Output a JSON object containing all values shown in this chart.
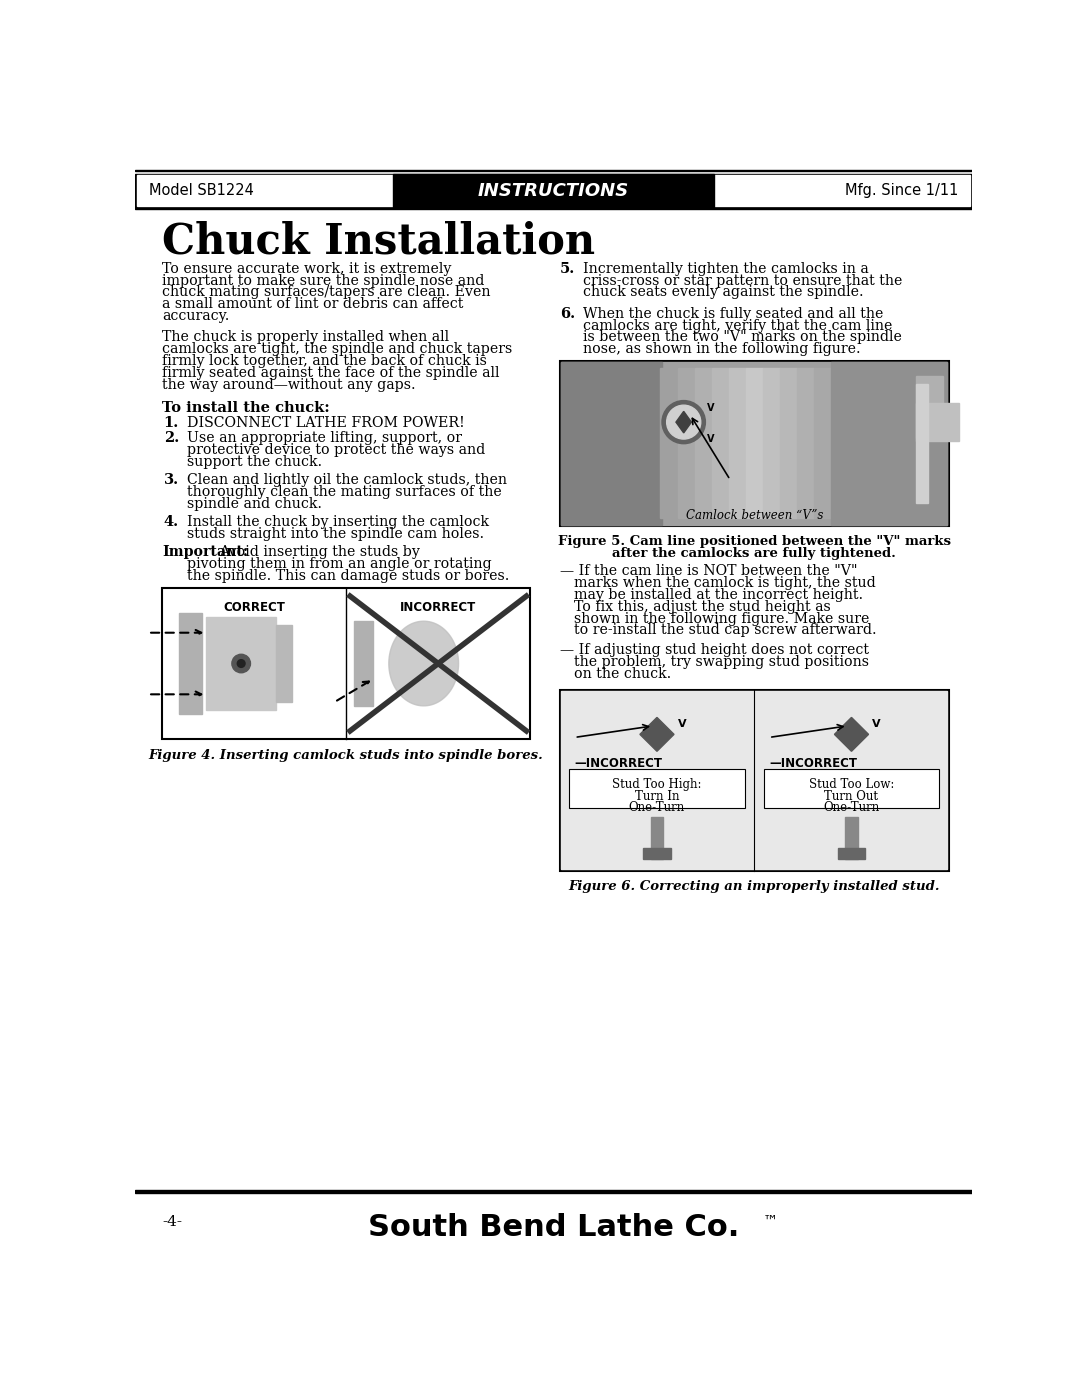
{
  "page_width": 10.8,
  "page_height": 13.97,
  "dpi": 100,
  "bg_color": "#ffffff",
  "header_bg": "#000000",
  "header_text": "INSTRUCTIONS",
  "header_text_color": "#ffffff",
  "header_left": "Model SB1224",
  "header_right": "Mfg. Since 1/11",
  "title": "Chuck Installation",
  "footer_page": "-4-",
  "footer_company": "South Bend Lathe Co.",
  "subhead": "To install the chuck:",
  "step1": "DISCONNECT LATHE FROM POWER!",
  "fig4_caption": "Figure 4. Inserting camlock studs into spindle bores.",
  "fig5_caption_line1": "Figure 5. Cam line positioned between the \"V\" marks",
  "fig5_caption_line2": "after the camlocks are fully tightened.",
  "fig6_caption": "Figure 6. Correcting an improperly installed stud.",
  "camlock_label": "Camlock between “V”s",
  "correct_label": "CORRECT",
  "incorrect_label": "INCORRECT"
}
